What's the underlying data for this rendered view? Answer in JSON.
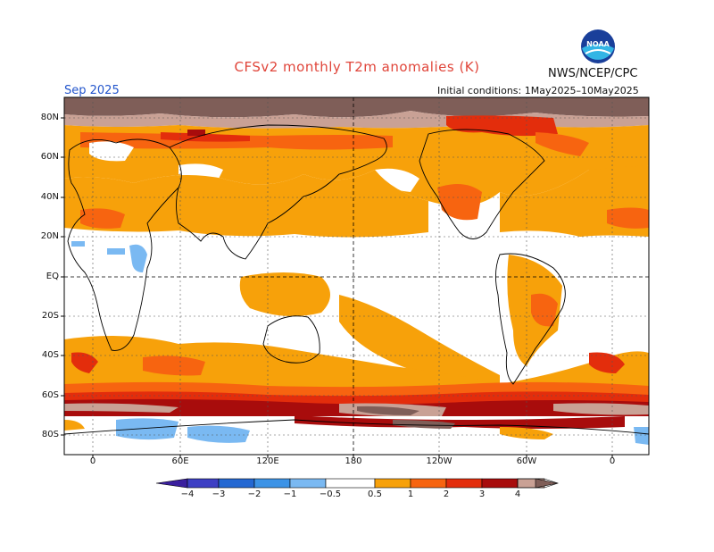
{
  "header": {
    "title": "CFSv2 monthly T2m anomalies (K)",
    "agency": "NWS/NCEP/CPC",
    "logo_text": "NOAA",
    "period": "Sep 2025",
    "initial_conditions": "Initial conditions: 1May2025–10May2025"
  },
  "axes": {
    "lat_labels": [
      "80N",
      "60N",
      "40N",
      "20N",
      "EQ",
      "20S",
      "40S",
      "60S",
      "80S"
    ],
    "lon_labels": [
      "0",
      "60E",
      "120E",
      "180",
      "120W",
      "60W",
      "0"
    ]
  },
  "colorbar": {
    "labels": [
      "−4",
      "−3",
      "−2",
      "−1",
      "−0.5",
      "0.5",
      "1",
      "2",
      "3",
      "4"
    ],
    "colors": {
      "lt_m4": "#3a1f9e",
      "m4_m3": "#3d3fc4",
      "m3_m2": "#2468d2",
      "m2_m1": "#3c93e6",
      "m1_m05": "#7ab9f2",
      "neutral": "#ffffff",
      "p05_1": "#f7a10a",
      "p1_2": "#f76410",
      "p2_3": "#e32d0c",
      "p3_4": "#a80c0c",
      "p4_5": "#c9a195",
      "gt_5": "#7f5e58"
    }
  }
}
